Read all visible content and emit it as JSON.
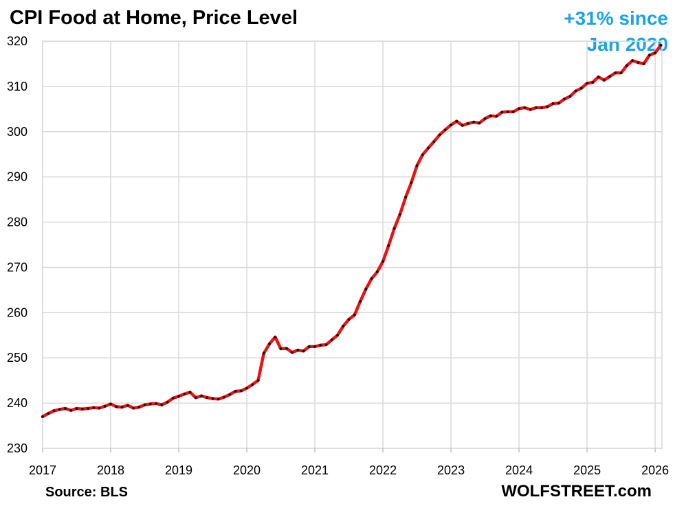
{
  "title": "CPI Food at Home, Price Level",
  "annotation": {
    "line1": "+31% since",
    "line2": "Jan 2020"
  },
  "footer": {
    "source": "Source: BLS",
    "brand": "WOLFSTREET.com"
  },
  "colors": {
    "line": "#ee1111",
    "markers": "#111111",
    "annotation": "#1aa3e8",
    "grid": "#d9d9d9"
  },
  "chart_data": {
    "type": "line",
    "title": "CPI Food at Home, Price Level",
    "xlabel": "",
    "ylabel": "",
    "xlim": [
      2017.0,
      2026.1
    ],
    "ylim": [
      230,
      320
    ],
    "yticks": [
      230,
      240,
      250,
      260,
      270,
      280,
      290,
      300,
      310,
      320
    ],
    "xticks": [
      "2017",
      "2018",
      "2019",
      "2020",
      "2021",
      "2022",
      "2023",
      "2024",
      "2025",
      "2026"
    ],
    "grid": true,
    "x_start": "2017-01",
    "frequency": "monthly",
    "series": [
      {
        "values": [
          237.0,
          237.7,
          238.3,
          238.6,
          238.8,
          238.4,
          238.8,
          238.7,
          238.8,
          239.0,
          238.9,
          239.3,
          239.8,
          239.2,
          239.1,
          239.5,
          238.9,
          239.1,
          239.6,
          239.8,
          239.9,
          239.6,
          240.2,
          241.1,
          241.5,
          242.0,
          242.4,
          241.2,
          241.6,
          241.2,
          241.0,
          240.9,
          241.3,
          241.9,
          242.6,
          242.7,
          243.3,
          244.1,
          245.0,
          251.0,
          253.1,
          254.6,
          252.0,
          252.1,
          251.2,
          251.7,
          251.5,
          252.5,
          252.5,
          252.8,
          252.9,
          254.0,
          255.0,
          257.0,
          258.5,
          259.5,
          262.5,
          265.2,
          267.5,
          269.0,
          271.3,
          274.8,
          278.6,
          281.7,
          285.5,
          288.7,
          292.5,
          294.9,
          296.4,
          297.8,
          299.3,
          300.4,
          301.5,
          302.3,
          301.4,
          301.8,
          302.1,
          301.9,
          302.9,
          303.5,
          303.4,
          304.3,
          304.4,
          304.4,
          305.1,
          305.3,
          304.9,
          305.3,
          305.3,
          305.5,
          306.2,
          306.3,
          307.2,
          307.8,
          309.0,
          309.6,
          310.7,
          310.9,
          312.1,
          311.4,
          312.2,
          313.0,
          313.0,
          314.6,
          315.7,
          315.3,
          315.0,
          316.9,
          317.4,
          319.1
        ]
      }
    ]
  }
}
